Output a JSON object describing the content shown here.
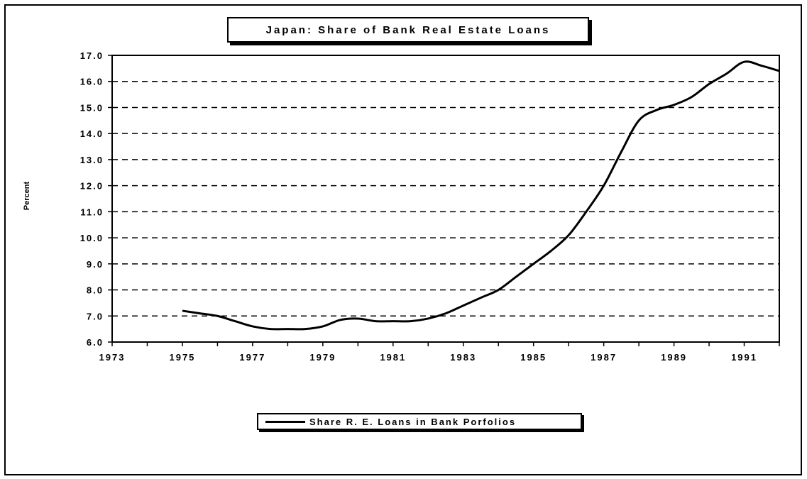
{
  "chart_data": {
    "type": "line",
    "title": "Japan: Share of Bank Real Estate Loans",
    "xlabel": "",
    "ylabel": "Percent",
    "xlim": [
      1973,
      1992
    ],
    "ylim": [
      6.0,
      17.0
    ],
    "x_ticks": [
      "1973",
      "1975",
      "1977",
      "1979",
      "1981",
      "1983",
      "1985",
      "1987",
      "1989",
      "1991"
    ],
    "y_ticks": [
      "6.0",
      "7.0",
      "8.0",
      "9.0",
      "10.0",
      "11.0",
      "12.0",
      "13.0",
      "14.0",
      "15.0",
      "16.0",
      "17.0"
    ],
    "grid": "horizontal dashed",
    "legend_position": "bottom",
    "series": [
      {
        "name": "Share R. E. Loans in Bank Porfolios",
        "x": [
          1975.0,
          1975.5,
          1976.0,
          1976.5,
          1977.0,
          1977.5,
          1978.0,
          1978.5,
          1979.0,
          1979.5,
          1980.0,
          1980.5,
          1981.0,
          1981.5,
          1982.0,
          1982.5,
          1983.0,
          1983.5,
          1984.0,
          1984.5,
          1985.0,
          1985.5,
          1986.0,
          1986.5,
          1987.0,
          1987.5,
          1988.0,
          1988.5,
          1989.0,
          1989.5,
          1990.0,
          1990.5,
          1991.0,
          1991.5,
          1992.0
        ],
        "y": [
          7.2,
          7.1,
          7.0,
          6.8,
          6.6,
          6.5,
          6.5,
          6.5,
          6.6,
          6.85,
          6.9,
          6.8,
          6.8,
          6.8,
          6.9,
          7.1,
          7.4,
          7.7,
          8.0,
          8.5,
          9.0,
          9.5,
          10.1,
          11.0,
          12.0,
          13.3,
          14.5,
          14.9,
          15.1,
          15.4,
          15.9,
          16.3,
          16.75,
          16.6,
          16.4
        ]
      }
    ]
  }
}
